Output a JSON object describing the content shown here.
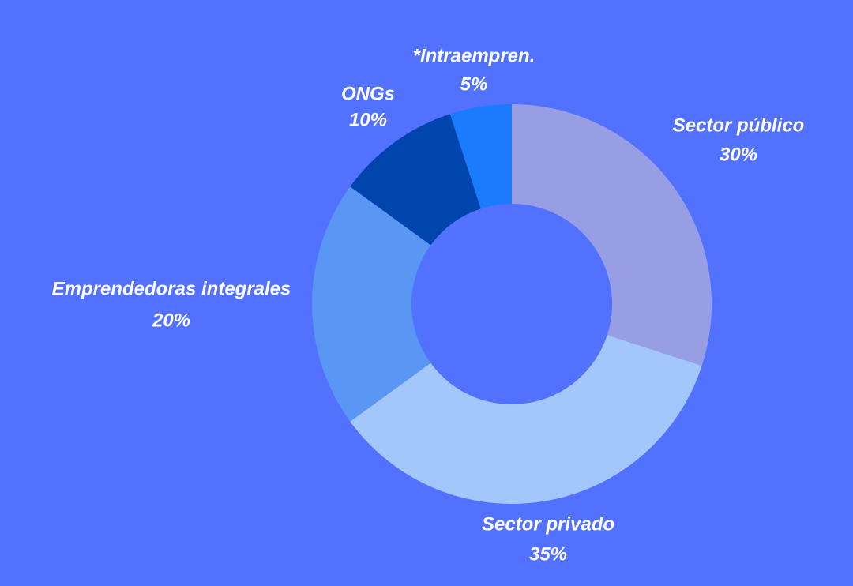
{
  "chart_data": {
    "type": "pie",
    "categories": [
      "Sector público",
      "Sector privado",
      "Emprendedoras integrales",
      "ONGs",
      "*Intraempren."
    ],
    "values": [
      30,
      35,
      20,
      10,
      5
    ],
    "value_labels": [
      "30%",
      "35%",
      "20%",
      "10%",
      "5%"
    ],
    "colors": [
      "#979ee3",
      "#a3c6fb",
      "#5a96f3",
      "#0044ad",
      "#1a7bff"
    ]
  }
}
